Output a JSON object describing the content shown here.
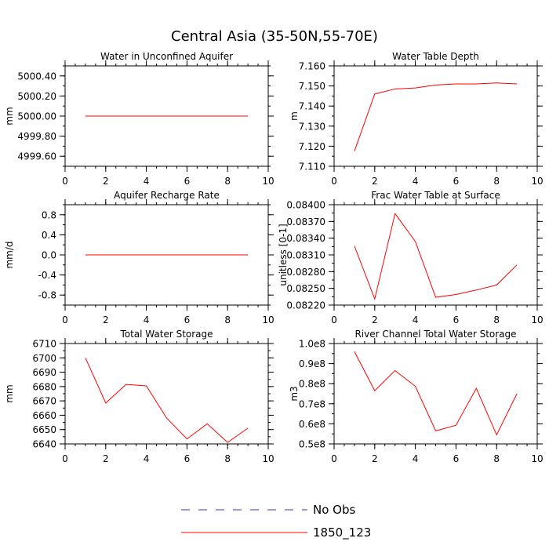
{
  "title": "Central Asia (35-50N,55-70E)",
  "chart_data": [
    {
      "type": "line",
      "title": "Water in Unconfined Aquifer",
      "ylabel": "mm",
      "xlim": [
        0,
        10
      ],
      "ylim": [
        4999.5,
        5000.5
      ],
      "xticks": [
        0,
        2,
        4,
        6,
        8,
        10
      ],
      "xtick_labels": [
        "0",
        "2",
        "4",
        "6",
        "8",
        "10"
      ],
      "yticks": [
        4999.6,
        4999.8,
        5000.0,
        5000.2,
        5000.4
      ],
      "ytick_labels": [
        "4999.60",
        "4999.80",
        "5000.00",
        "5000.20",
        "5000.40"
      ],
      "series": [
        {
          "name": "1850_123",
          "color": "#ff0000",
          "x": [
            1,
            2,
            3,
            4,
            5,
            6,
            7,
            8,
            9
          ],
          "y": [
            5000,
            5000,
            5000,
            5000,
            5000,
            5000,
            5000,
            5000,
            5000
          ]
        }
      ]
    },
    {
      "type": "line",
      "title": "Water Table Depth",
      "ylabel": "m",
      "xlim": [
        0,
        10
      ],
      "ylim": [
        7.11,
        7.16
      ],
      "xticks": [
        0,
        2,
        4,
        6,
        8,
        10
      ],
      "xtick_labels": [
        "0",
        "2",
        "4",
        "6",
        "8",
        "10"
      ],
      "yticks": [
        7.11,
        7.12,
        7.13,
        7.14,
        7.15,
        7.16
      ],
      "ytick_labels": [
        "7.110",
        "7.120",
        "7.130",
        "7.140",
        "7.150",
        "7.160"
      ],
      "series": [
        {
          "name": "1850_123",
          "color": "#ff0000",
          "x": [
            1,
            2,
            3,
            4,
            5,
            6,
            7,
            8,
            9
          ],
          "y": [
            7.1175,
            7.146,
            7.1485,
            7.149,
            7.1505,
            7.151,
            7.151,
            7.1515,
            7.151
          ]
        }
      ]
    },
    {
      "type": "line",
      "title": "Aquifer Recharge Rate",
      "ylabel": "mm/d",
      "xlim": [
        0,
        10
      ],
      "ylim": [
        -1.0,
        1.0
      ],
      "xticks": [
        0,
        2,
        4,
        6,
        8,
        10
      ],
      "xtick_labels": [
        "0",
        "2",
        "4",
        "6",
        "8",
        "10"
      ],
      "yticks": [
        -0.8,
        -0.4,
        0.0,
        0.4,
        0.8
      ],
      "ytick_labels": [
        "-0.8",
        "-0.4",
        "0.0",
        "0.4",
        "0.8"
      ],
      "series": [
        {
          "name": "1850_123",
          "color": "#ff0000",
          "x": [
            1,
            2,
            3,
            4,
            5,
            6,
            7,
            8,
            9
          ],
          "y": [
            0,
            0,
            0,
            0,
            0,
            0,
            0,
            0,
            0
          ]
        }
      ]
    },
    {
      "type": "line",
      "title": "Frac Water Table at Surface",
      "ylabel": "unitless [0-1]",
      "xlim": [
        0,
        10
      ],
      "ylim": [
        0.0822,
        0.084
      ],
      "xticks": [
        0,
        2,
        4,
        6,
        8,
        10
      ],
      "xtick_labels": [
        "0",
        "2",
        "4",
        "6",
        "8",
        "10"
      ],
      "yticks": [
        0.0822,
        0.0825,
        0.0828,
        0.0831,
        0.0834,
        0.0837,
        0.084
      ],
      "ytick_labels": [
        "0.08220",
        "0.08250",
        "0.08280",
        "0.08310",
        "0.08340",
        "0.08370",
        "0.08400"
      ],
      "series": [
        {
          "name": "1850_123",
          "color": "#ff0000",
          "x": [
            1,
            2,
            3,
            4,
            5,
            6,
            7,
            8,
            9
          ],
          "y": [
            0.08326,
            0.08231,
            0.08384,
            0.08334,
            0.08234,
            0.08239,
            0.08247,
            0.08256,
            0.08292
          ]
        }
      ]
    },
    {
      "type": "line",
      "title": "Total Water Storage",
      "ylabel": "mm",
      "xlim": [
        0,
        10
      ],
      "ylim": [
        6640,
        6710
      ],
      "xticks": [
        0,
        2,
        4,
        6,
        8,
        10
      ],
      "xtick_labels": [
        "0",
        "2",
        "4",
        "6",
        "8",
        "10"
      ],
      "yticks": [
        6640,
        6650,
        6660,
        6670,
        6680,
        6690,
        6700,
        6710
      ],
      "ytick_labels": [
        "6640",
        "6650",
        "6660",
        "6670",
        "6680",
        "6690",
        "6700",
        "6710"
      ],
      "series": [
        {
          "name": "1850_123",
          "color": "#ff0000",
          "x": [
            1,
            2,
            3,
            4,
            5,
            6,
            7,
            8,
            9
          ],
          "y": [
            6700,
            6668.5,
            6681.5,
            6680.5,
            6658,
            6643.5,
            6654,
            6641,
            6651
          ]
        }
      ]
    },
    {
      "type": "line",
      "title": "River Channel Total Water Storage",
      "ylabel": "m3",
      "xlim": [
        0,
        10
      ],
      "ylim": [
        50000000,
        100000000
      ],
      "xticks": [
        0,
        2,
        4,
        6,
        8,
        10
      ],
      "xtick_labels": [
        "0",
        "2",
        "4",
        "6",
        "8",
        "10"
      ],
      "yticks": [
        50000000,
        60000000,
        70000000,
        80000000,
        90000000,
        100000000
      ],
      "ytick_labels": [
        "0.5e8",
        "0.6e8",
        "0.7e8",
        "0.8e8",
        "0.9e8",
        "1.0e8"
      ],
      "series": [
        {
          "name": "1850_123",
          "color": "#ff0000",
          "x": [
            1,
            2,
            3,
            4,
            5,
            6,
            7,
            8,
            9
          ],
          "y": [
            96000000,
            76500000,
            86500000,
            78700000,
            56500000,
            59300000,
            77700000,
            54500000,
            75000000
          ]
        }
      ]
    }
  ],
  "legend": {
    "placement": "bottom-center",
    "items": [
      {
        "label": "No Obs",
        "color": "#3333cc",
        "style": "dashed"
      },
      {
        "label": "1850_123",
        "color": "#ff0000",
        "style": "solid"
      }
    ]
  }
}
